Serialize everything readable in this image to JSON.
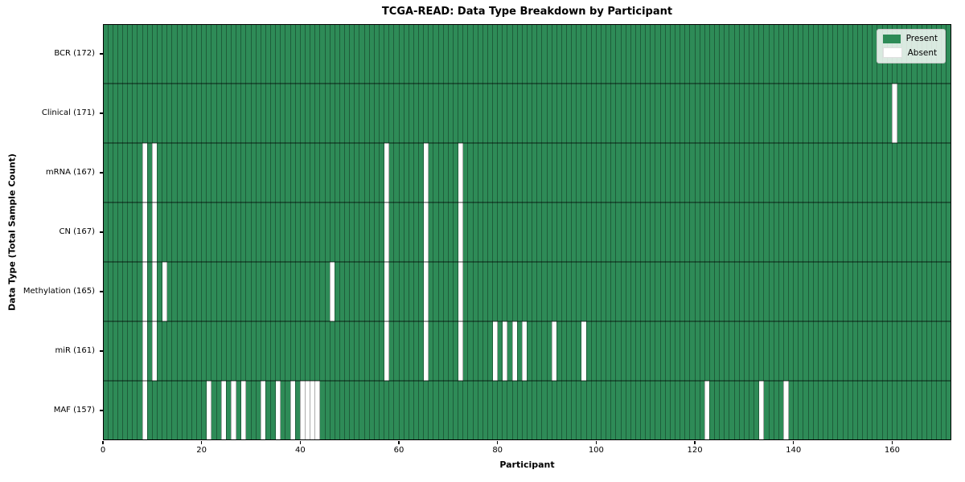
{
  "chart_data": {
    "type": "heatmap",
    "title": "TCGA-READ: Data Type Breakdown by Participant",
    "xlabel": "Participant",
    "ylabel": "Data Type (Total Sample Count)",
    "x_ticks": [
      0,
      20,
      40,
      60,
      80,
      100,
      120,
      140,
      160
    ],
    "x_range": [
      0,
      172
    ],
    "n_participants": 172,
    "grid": true,
    "legend_position": "upper right",
    "legend": [
      {
        "label": "Present",
        "color": "#2e8b57"
      },
      {
        "label": "Absent",
        "color": "#ffffff"
      }
    ],
    "colors": {
      "present": "#2e8b57",
      "absent": "#ffffff",
      "grid_line": "rgba(0,0,0,0.35)",
      "frame": "#000000"
    },
    "rows": [
      {
        "label": "BCR (172)",
        "name": "BCR",
        "total_present": 172,
        "absent_participants": []
      },
      {
        "label": "Clinical (171)",
        "name": "Clinical",
        "total_present": 171,
        "absent_participants": [
          160
        ]
      },
      {
        "label": "mRNA (167)",
        "name": "mRNA",
        "total_present": 167,
        "absent_participants": [
          8,
          10,
          57,
          65,
          72
        ]
      },
      {
        "label": "CN (167)",
        "name": "CN",
        "total_present": 167,
        "absent_participants": [
          8,
          10,
          57,
          65,
          72
        ]
      },
      {
        "label": "Methylation (165)",
        "name": "Methylation",
        "total_present": 165,
        "absent_participants": [
          8,
          10,
          12,
          46,
          57,
          65,
          72
        ]
      },
      {
        "label": "miR (161)",
        "name": "miR",
        "total_present": 161,
        "absent_participants": [
          8,
          10,
          57,
          65,
          72,
          79,
          81,
          83,
          85,
          91,
          97
        ]
      },
      {
        "label": "MAF (157)",
        "name": "MAF",
        "total_present": 157,
        "absent_participants": [
          8,
          21,
          24,
          26,
          28,
          32,
          35,
          38,
          40,
          41,
          42,
          43,
          122,
          133,
          138
        ]
      }
    ]
  }
}
